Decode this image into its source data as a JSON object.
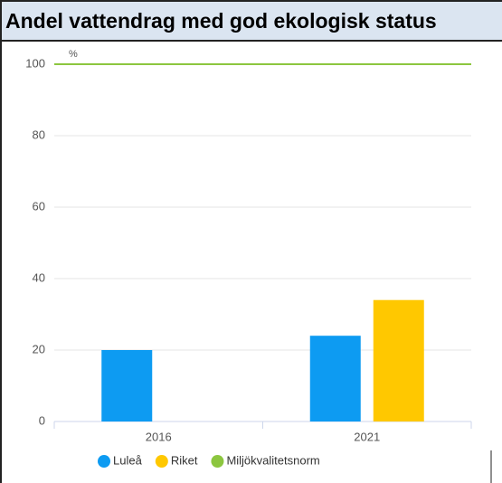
{
  "chart_data": {
    "type": "bar",
    "title": "Andel vattendrag med god ekologisk status",
    "y_unit": "%",
    "categories": [
      "2016",
      "2021"
    ],
    "series": [
      {
        "name": "Luleå",
        "color": "#0d9bf2",
        "values": [
          20,
          24
        ]
      },
      {
        "name": "Riket",
        "color": "#ffc800",
        "values": [
          null,
          34
        ]
      }
    ],
    "reference_lines": [
      {
        "name": "Miljökvalitetsnorm",
        "color": "#8cc63f",
        "value": 100
      }
    ],
    "ylim": [
      0,
      100
    ],
    "yticks": [
      0,
      20,
      40,
      60,
      80,
      100
    ],
    "grid": true,
    "legend": "bottom"
  }
}
